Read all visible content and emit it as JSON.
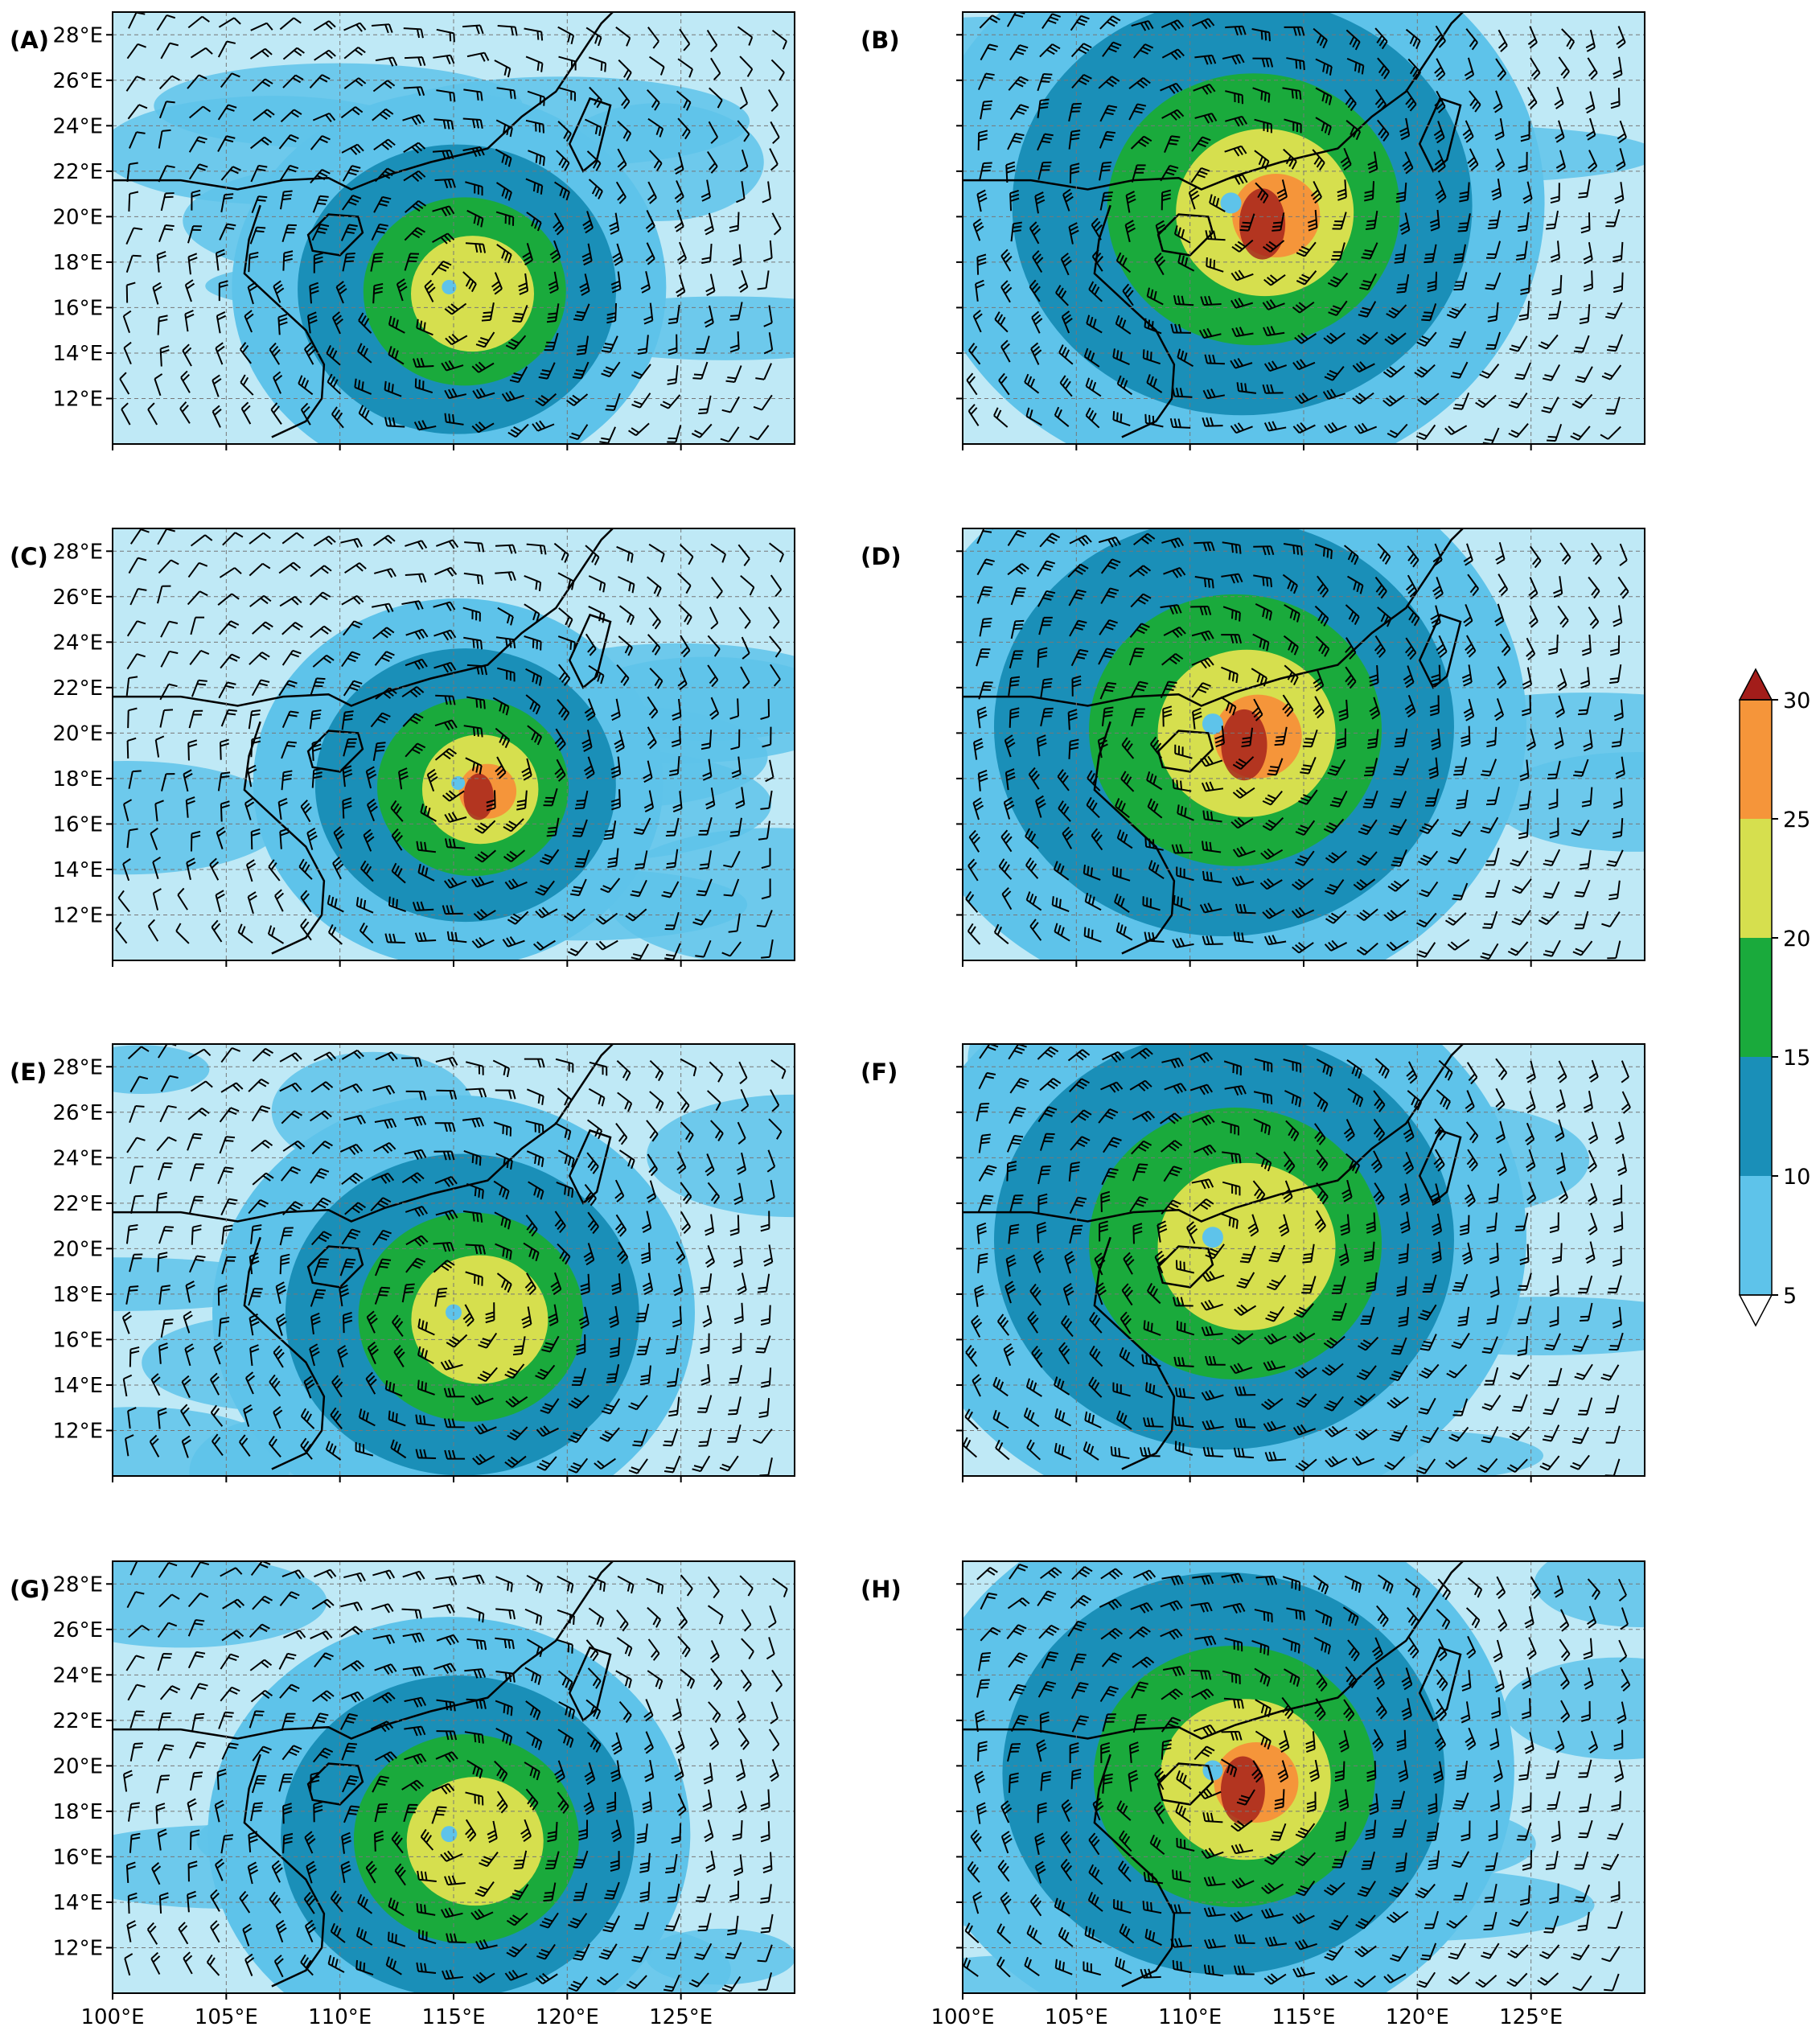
{
  "figure": {
    "colorbar": {
      "ticks": [
        "5",
        "10",
        "15",
        "20",
        "25",
        "30"
      ],
      "levels": [
        5,
        10,
        15,
        20,
        25,
        30
      ],
      "colors": [
        "#bfe9f6",
        "#5ec3ea",
        "#1a8fb8",
        "#1aaa3c",
        "#d6df4e",
        "#f5953a"
      ],
      "over_color": "#a31d1a",
      "under_color": "#ffffff",
      "extend": "both"
    },
    "lat_ticks": [
      "28°E",
      "26°E",
      "24°E",
      "22°E",
      "20°E",
      "18°E",
      "16°E",
      "14°E",
      "12°E"
    ],
    "lat_values": [
      28,
      26,
      24,
      22,
      20,
      18,
      16,
      14,
      12
    ],
    "lon_ticks": [
      "100°E",
      "105°E",
      "110°E",
      "115°E",
      "120°E",
      "125°E"
    ],
    "lon_values": [
      100,
      105,
      110,
      115,
      120,
      125
    ],
    "extent": {
      "lon": [
        100,
        130
      ],
      "lat": [
        10,
        29
      ]
    },
    "grid": "dashed",
    "panels": [
      {
        "label": "(A)",
        "cyclone": {
          "lon": 114.8,
          "lat": 16.9
        },
        "max_speed": 25,
        "scale": 0.9
      },
      {
        "label": "(B)",
        "cyclone": {
          "lon": 111.8,
          "lat": 20.6
        },
        "max_speed": 30,
        "scale": 1.3
      },
      {
        "label": "(C)",
        "cyclone": {
          "lon": 115.2,
          "lat": 17.8
        },
        "max_speed": 30,
        "scale": 0.85
      },
      {
        "label": "(D)",
        "cyclone": {
          "lon": 111.0,
          "lat": 20.4
        },
        "max_speed": 30,
        "scale": 1.3
      },
      {
        "label": "(E)",
        "cyclone": {
          "lon": 115.0,
          "lat": 17.2
        },
        "max_speed": 25,
        "scale": 1.0
      },
      {
        "label": "(F)",
        "cyclone": {
          "lon": 111.0,
          "lat": 20.5
        },
        "max_speed": 25,
        "scale": 1.3
      },
      {
        "label": "(G)",
        "cyclone": {
          "lon": 114.8,
          "lat": 17.0
        },
        "max_speed": 25,
        "scale": 1.0
      },
      {
        "label": "(H)",
        "cyclone": {
          "lon": 111.0,
          "lat": 19.8
        },
        "max_speed": 30,
        "scale": 1.25
      }
    ]
  }
}
